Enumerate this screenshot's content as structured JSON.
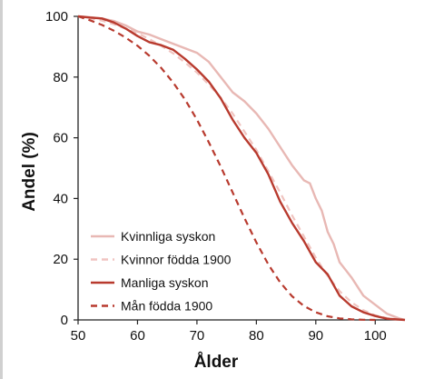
{
  "chart_data": {
    "type": "line",
    "xlabel": "Ålder",
    "ylabel": "Andel (%)",
    "xlim": [
      50,
      105
    ],
    "ylim": [
      0,
      100
    ],
    "x_ticks": [
      50,
      60,
      70,
      80,
      90,
      100
    ],
    "y_ticks": [
      0,
      20,
      40,
      60,
      80,
      100
    ],
    "grid": false,
    "legend_position": "bottom-left",
    "series": [
      {
        "name": "Kvinnliga syskon",
        "color": "#e8b8b4",
        "dash": "solid",
        "points": [
          [
            50,
            100
          ],
          [
            52,
            99.7
          ],
          [
            54,
            99.3
          ],
          [
            56,
            98.5
          ],
          [
            58,
            97
          ],
          [
            60,
            95
          ],
          [
            62,
            94
          ],
          [
            64,
            92.5
          ],
          [
            66,
            91
          ],
          [
            68,
            89.5
          ],
          [
            70,
            88
          ],
          [
            72,
            85
          ],
          [
            74,
            80
          ],
          [
            76,
            75
          ],
          [
            78,
            72
          ],
          [
            80,
            68
          ],
          [
            82,
            63
          ],
          [
            84,
            57
          ],
          [
            86,
            51
          ],
          [
            88,
            46
          ],
          [
            89,
            45
          ],
          [
            90,
            40
          ],
          [
            91,
            36
          ],
          [
            92,
            29
          ],
          [
            93,
            25
          ],
          [
            94,
            19
          ],
          [
            96,
            14
          ],
          [
            98,
            8
          ],
          [
            100,
            5
          ],
          [
            102,
            2
          ],
          [
            104,
            0.5
          ],
          [
            105,
            0
          ]
        ]
      },
      {
        "name": "Kvinnor födda 1900",
        "color": "#f0c4c0",
        "dash": "dashed",
        "points": [
          [
            50,
            100
          ],
          [
            52,
            99.4
          ],
          [
            54,
            98.6
          ],
          [
            56,
            97.4
          ],
          [
            58,
            96
          ],
          [
            60,
            94.5
          ],
          [
            62,
            92.5
          ],
          [
            64,
            90.3
          ],
          [
            66,
            87.8
          ],
          [
            68,
            84.8
          ],
          [
            70,
            81.5
          ],
          [
            72,
            77.5
          ],
          [
            74,
            73.2
          ],
          [
            76,
            68
          ],
          [
            78,
            62
          ],
          [
            80,
            56
          ],
          [
            82,
            49
          ],
          [
            84,
            42
          ],
          [
            86,
            34.5
          ],
          [
            88,
            27.5
          ],
          [
            90,
            20.5
          ],
          [
            92,
            14.5
          ],
          [
            94,
            9.5
          ],
          [
            96,
            5.8
          ],
          [
            98,
            3.2
          ],
          [
            100,
            1.5
          ],
          [
            102,
            0.6
          ],
          [
            104,
            0.2
          ],
          [
            105,
            0
          ]
        ]
      },
      {
        "name": "Manliga syskon",
        "color": "#b83a2e",
        "dash": "solid",
        "points": [
          [
            50,
            100
          ],
          [
            52,
            99.6
          ],
          [
            54,
            99.3
          ],
          [
            56,
            98
          ],
          [
            58,
            96
          ],
          [
            60,
            93.5
          ],
          [
            62,
            91.5
          ],
          [
            64,
            90.5
          ],
          [
            66,
            89
          ],
          [
            68,
            86
          ],
          [
            70,
            82.5
          ],
          [
            72,
            78.5
          ],
          [
            74,
            73
          ],
          [
            76,
            66
          ],
          [
            78,
            60
          ],
          [
            80,
            55
          ],
          [
            82,
            48
          ],
          [
            84,
            39
          ],
          [
            86,
            32
          ],
          [
            88,
            26
          ],
          [
            90,
            19
          ],
          [
            92,
            15
          ],
          [
            94,
            8
          ],
          [
            96,
            4.5
          ],
          [
            98,
            2.5
          ],
          [
            100,
            1.3
          ],
          [
            102,
            0.4
          ],
          [
            105,
            0
          ]
        ]
      },
      {
        "name": "Mån födda 1900",
        "color": "#b83a2e",
        "dash": "dashed",
        "points": [
          [
            50,
            100
          ],
          [
            52,
            98.7
          ],
          [
            54,
            97.2
          ],
          [
            56,
            95.3
          ],
          [
            58,
            93
          ],
          [
            60,
            90.3
          ],
          [
            62,
            87
          ],
          [
            64,
            83
          ],
          [
            66,
            78.2
          ],
          [
            68,
            72.6
          ],
          [
            70,
            66
          ],
          [
            72,
            58.5
          ],
          [
            74,
            50.5
          ],
          [
            76,
            42
          ],
          [
            78,
            33.5
          ],
          [
            80,
            25.5
          ],
          [
            82,
            18.3
          ],
          [
            84,
            12.4
          ],
          [
            86,
            7.8
          ],
          [
            88,
            4.6
          ],
          [
            90,
            2.5
          ],
          [
            92,
            1.2
          ],
          [
            94,
            0.5
          ],
          [
            96,
            0.2
          ],
          [
            98,
            0.05
          ],
          [
            100,
            0
          ]
        ]
      }
    ]
  }
}
